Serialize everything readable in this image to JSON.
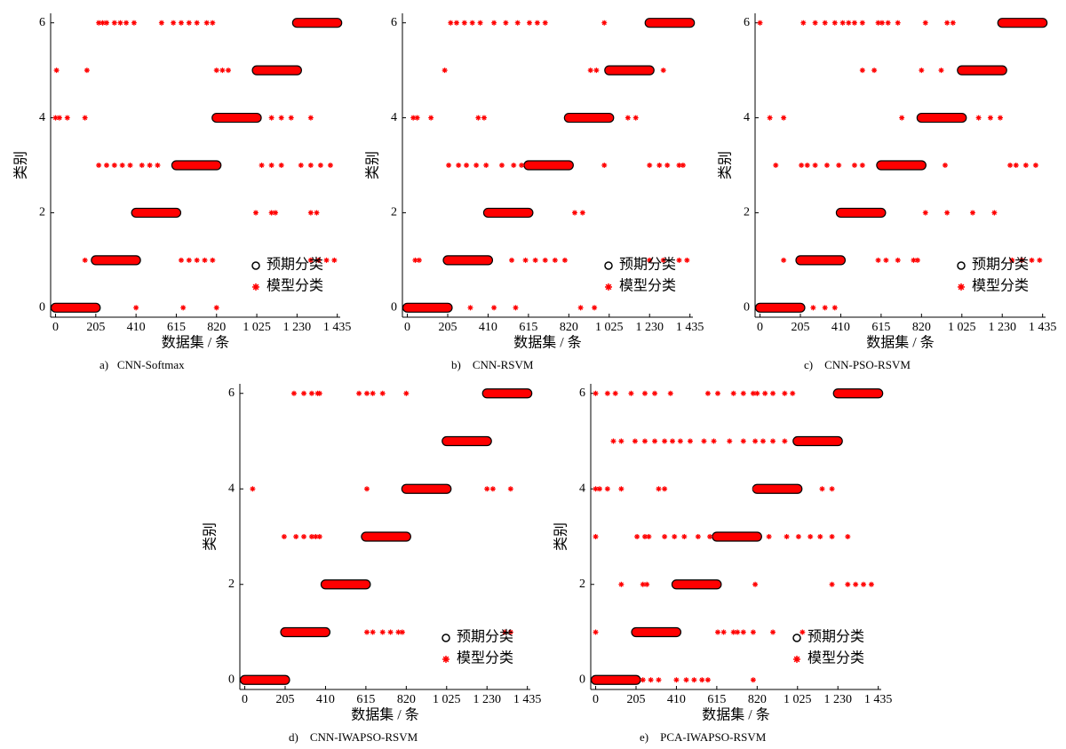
{
  "chart_data": [
    {
      "type": "scatter",
      "caption": "a)   CNN-Softmax",
      "xlabel": "数据集 / 条",
      "ylabel": "类别",
      "xlim": [
        -25,
        1450
      ],
      "ylim": [
        -0.2,
        6.2
      ],
      "xticks": [
        0,
        205,
        410,
        615,
        820,
        {
          "value": 1025,
          "label": "1 025"
        },
        {
          "value": 1230,
          "label": "1 230"
        },
        {
          "value": 1435,
          "label": "1 435"
        }
      ],
      "yticks": [
        0,
        2,
        4,
        6
      ],
      "series": [
        {
          "name": "预期分类",
          "color": "#000000",
          "x_start": [
            0,
            205,
            410,
            615,
            820,
            1025,
            1230
          ],
          "x_end": [
            205,
            410,
            615,
            820,
            1025,
            1230,
            1435
          ],
          "values": [
            0,
            1,
            2,
            3,
            4,
            5,
            6
          ]
        },
        {
          "name": "模型分类",
          "color": "#ff0000",
          "x": [
            220,
            240,
            260,
            300,
            330,
            360,
            400,
            540,
            600,
            640,
            680,
            720,
            770,
            800,
            5,
            160,
            820,
            850,
            880,
            0,
            20,
            60,
            150,
            1100,
            1150,
            1200,
            1300,
            220,
            260,
            300,
            340,
            380,
            440,
            480,
            520,
            1050,
            1100,
            1150,
            1250,
            1300,
            1350,
            1400,
            1020,
            1100,
            1120,
            1300,
            1330,
            150,
            640,
            680,
            720,
            760,
            800,
            1300,
            1340,
            1380,
            1420,
            410,
            650,
            820
          ],
          "values": [
            6,
            6,
            6,
            6,
            6,
            6,
            6,
            6,
            6,
            6,
            6,
            6,
            6,
            6,
            5,
            5,
            5,
            5,
            5,
            4,
            4,
            4,
            4,
            4,
            4,
            4,
            4,
            3,
            3,
            3,
            3,
            3,
            3,
            3,
            3,
            3,
            3,
            3,
            3,
            3,
            3,
            3,
            2,
            2,
            2,
            2,
            2,
            1,
            1,
            1,
            1,
            1,
            1,
            1,
            1,
            1,
            1,
            0,
            0,
            0
          ]
        }
      ]
    },
    {
      "type": "scatter",
      "caption": "b)    CNN-RSVM",
      "xlabel": "数据集 / 条",
      "ylabel": "类别",
      "xlim": [
        -25,
        1450
      ],
      "ylim": [
        -0.2,
        6.2
      ],
      "xticks": [
        0,
        205,
        410,
        615,
        820,
        {
          "value": 1025,
          "label": "1 025"
        },
        {
          "value": 1230,
          "label": "1 230"
        },
        {
          "value": 1435,
          "label": "1 435"
        }
      ],
      "yticks": [
        0,
        2,
        4,
        6
      ],
      "series": [
        {
          "name": "预期分类",
          "color": "#000000",
          "x_start": [
            0,
            205,
            410,
            615,
            820,
            1025,
            1230
          ],
          "x_end": [
            205,
            410,
            615,
            820,
            1025,
            1230,
            1435
          ],
          "values": [
            0,
            1,
            2,
            3,
            4,
            5,
            6
          ]
        },
        {
          "name": "模型分类",
          "color": "#ff0000",
          "x": [
            220,
            250,
            290,
            330,
            370,
            440,
            500,
            560,
            620,
            660,
            700,
            1000,
            190,
            930,
            960,
            1300,
            30,
            50,
            120,
            360,
            390,
            1120,
            1160,
            210,
            260,
            300,
            350,
            400,
            480,
            540,
            580,
            1000,
            1230,
            1280,
            1320,
            1380,
            1400,
            850,
            890,
            40,
            60,
            530,
            600,
            650,
            700,
            750,
            800,
            1230,
            1300,
            1380,
            1420,
            320,
            440,
            550,
            880,
            950
          ],
          "values": [
            6,
            6,
            6,
            6,
            6,
            6,
            6,
            6,
            6,
            6,
            6,
            6,
            5,
            5,
            5,
            5,
            4,
            4,
            4,
            4,
            4,
            4,
            4,
            3,
            3,
            3,
            3,
            3,
            3,
            3,
            3,
            3,
            3,
            3,
            3,
            3,
            3,
            2,
            2,
            1,
            1,
            1,
            1,
            1,
            1,
            1,
            1,
            1,
            1,
            1,
            1,
            0,
            0,
            0,
            0,
            0
          ]
        }
      ]
    },
    {
      "type": "scatter",
      "caption": "c)    CNN-PSO-RSVM",
      "xlabel": "数据集 / 条",
      "ylabel": "类别",
      "xlim": [
        -25,
        1450
      ],
      "ylim": [
        -0.2,
        6.2
      ],
      "xticks": [
        0,
        205,
        410,
        615,
        820,
        {
          "value": 1025,
          "label": "1 025"
        },
        {
          "value": 1230,
          "label": "1 230"
        },
        {
          "value": 1435,
          "label": "1 435"
        }
      ],
      "yticks": [
        0,
        2,
        4,
        6
      ],
      "series": [
        {
          "name": "预期分类",
          "color": "#000000",
          "x_start": [
            0,
            205,
            410,
            615,
            820,
            1025,
            1230
          ],
          "x_end": [
            205,
            410,
            615,
            820,
            1025,
            1230,
            1435
          ],
          "values": [
            0,
            1,
            2,
            3,
            4,
            5,
            6
          ]
        },
        {
          "name": "模型分类",
          "color": "#ff0000",
          "x": [
            0,
            220,
            280,
            330,
            380,
            420,
            450,
            480,
            520,
            600,
            620,
            650,
            700,
            840,
            950,
            980,
            520,
            580,
            820,
            920,
            50,
            120,
            720,
            1110,
            1170,
            1220,
            80,
            210,
            240,
            280,
            340,
            400,
            480,
            520,
            940,
            1270,
            1300,
            1350,
            1400,
            840,
            950,
            1080,
            1190,
            120,
            600,
            640,
            700,
            780,
            800,
            1280,
            1330,
            1380,
            1420,
            270,
            330,
            380
          ],
          "values": [
            6,
            6,
            6,
            6,
            6,
            6,
            6,
            6,
            6,
            6,
            6,
            6,
            6,
            6,
            6,
            6,
            5,
            5,
            5,
            5,
            4,
            4,
            4,
            4,
            4,
            4,
            3,
            3,
            3,
            3,
            3,
            3,
            3,
            3,
            3,
            3,
            3,
            3,
            3,
            2,
            2,
            2,
            2,
            1,
            1,
            1,
            1,
            1,
            1,
            1,
            1,
            1,
            1,
            0,
            0,
            0
          ]
        }
      ]
    },
    {
      "type": "scatter",
      "caption": "d)    CNN-IWAPSO-RSVM",
      "xlabel": "数据集 / 条",
      "ylabel": "类别",
      "xlim": [
        -25,
        1450
      ],
      "ylim": [
        -0.2,
        6.2
      ],
      "xticks": [
        0,
        205,
        410,
        615,
        820,
        {
          "value": 1025,
          "label": "1 025"
        },
        {
          "value": 1230,
          "label": "1 230"
        },
        {
          "value": 1435,
          "label": "1 435"
        }
      ],
      "yticks": [
        0,
        2,
        4,
        6
      ],
      "series": [
        {
          "name": "预期分类",
          "color": "#000000",
          "x_start": [
            0,
            205,
            410,
            615,
            820,
            1025,
            1230
          ],
          "x_end": [
            205,
            410,
            615,
            820,
            1025,
            1230,
            1435
          ],
          "values": [
            0,
            1,
            2,
            3,
            4,
            5,
            6
          ]
        },
        {
          "name": "模型分类",
          "color": "#ff0000",
          "x": [
            250,
            300,
            340,
            370,
            380,
            580,
            620,
            650,
            700,
            820,
            40,
            620,
            1230,
            1260,
            1350,
            200,
            260,
            300,
            340,
            360,
            380,
            620,
            650,
            700,
            740,
            780,
            800,
            1320,
            1350
          ],
          "values": [
            6,
            6,
            6,
            6,
            6,
            6,
            6,
            6,
            6,
            6,
            4,
            4,
            4,
            4,
            4,
            3,
            3,
            3,
            3,
            3,
            3,
            1,
            1,
            1,
            1,
            1,
            1,
            1,
            1
          ]
        }
      ]
    },
    {
      "type": "scatter",
      "caption": "e)    PCA-IWAPSO-RSVM",
      "xlabel": "数据集 / 条",
      "ylabel": "类别",
      "xlim": [
        -25,
        1450
      ],
      "ylim": [
        -0.2,
        6.2
      ],
      "xticks": [
        0,
        205,
        410,
        615,
        820,
        {
          "value": 1025,
          "label": "1 025"
        },
        {
          "value": 1230,
          "label": "1 230"
        },
        {
          "value": 1435,
          "label": "1 435"
        }
      ],
      "yticks": [
        0,
        2,
        4,
        6
      ],
      "series": [
        {
          "name": "预期分类",
          "color": "#000000",
          "x_start": [
            0,
            205,
            410,
            615,
            820,
            1025,
            1230
          ],
          "x_end": [
            205,
            410,
            615,
            820,
            1025,
            1230,
            1435
          ],
          "values": [
            0,
            1,
            2,
            3,
            4,
            5,
            6
          ]
        },
        {
          "name": "模型分类",
          "color": "#ff0000",
          "x": [
            0,
            60,
            100,
            180,
            250,
            300,
            380,
            570,
            620,
            700,
            750,
            800,
            820,
            860,
            900,
            960,
            1000,
            90,
            130,
            200,
            250,
            300,
            350,
            390,
            430,
            480,
            550,
            600,
            680,
            750,
            810,
            850,
            900,
            960,
            1230,
            0,
            20,
            60,
            130,
            320,
            350,
            810,
            1150,
            1200,
            0,
            210,
            250,
            270,
            350,
            400,
            450,
            520,
            580,
            880,
            970,
            1030,
            1090,
            1140,
            1200,
            1280,
            130,
            240,
            260,
            810,
            1200,
            1280,
            1320,
            1360,
            1400,
            0,
            380,
            400,
            620,
            650,
            700,
            720,
            750,
            800,
            900,
            1050,
            240,
            280,
            320,
            410,
            460,
            500,
            540,
            570,
            800
          ],
          "values": [
            6,
            6,
            6,
            6,
            6,
            6,
            6,
            6,
            6,
            6,
            6,
            6,
            6,
            6,
            6,
            6,
            6,
            5,
            5,
            5,
            5,
            5,
            5,
            5,
            5,
            5,
            5,
            5,
            5,
            5,
            5,
            5,
            5,
            5,
            5,
            4,
            4,
            4,
            4,
            4,
            4,
            4,
            4,
            4,
            3,
            3,
            3,
            3,
            3,
            3,
            3,
            3,
            3,
            3,
            3,
            3,
            3,
            3,
            3,
            3,
            2,
            2,
            2,
            2,
            2,
            2,
            2,
            2,
            2,
            1,
            1,
            1,
            1,
            1,
            1,
            1,
            1,
            1,
            1,
            1,
            0,
            0,
            0,
            0,
            0,
            0,
            0,
            0,
            0
          ]
        }
      ]
    }
  ]
}
